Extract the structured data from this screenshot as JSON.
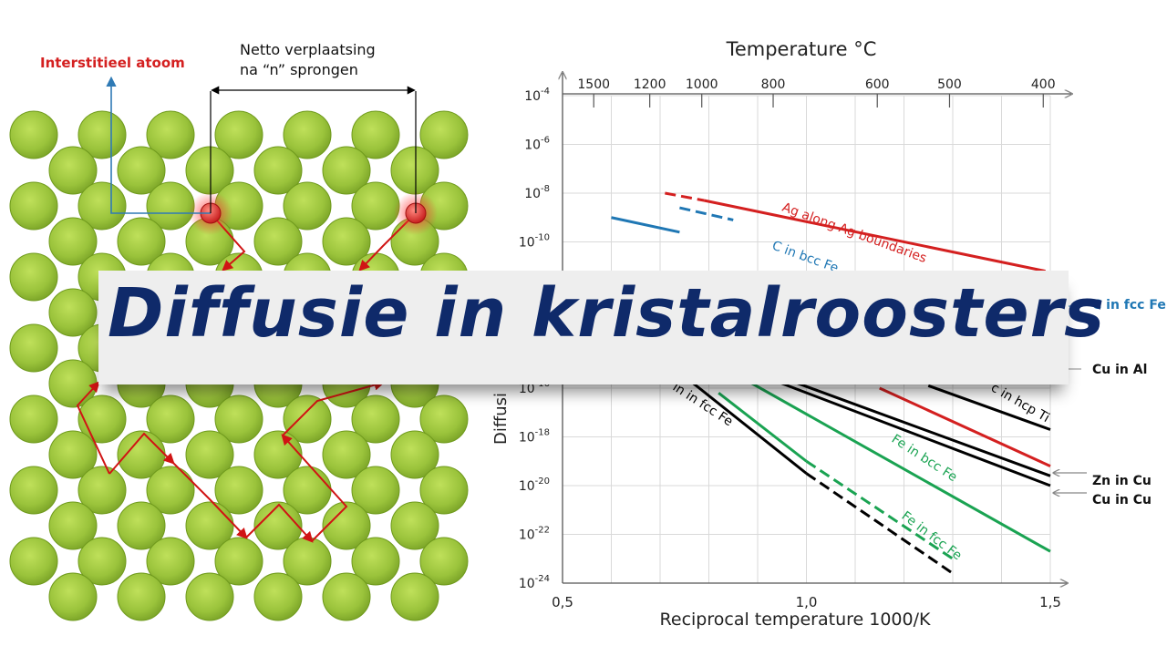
{
  "lattice": {
    "interstitial_label": "Interstitieel atoom",
    "displacement_label_line1": "Netto verplaatsing",
    "displacement_label_line2": "na “n” sprongen",
    "colors": {
      "atom": "#9ac33b",
      "atom_edge": "#6f9a1c",
      "interstitial": "#e23a2e",
      "path": "#d01414",
      "axis": "#2f7ab5"
    }
  },
  "banner": {
    "title": "Diffusie in kristalroosters"
  },
  "chart_data": {
    "type": "line",
    "top_axis_label": "Temperature °C",
    "top_ticks": [
      "1500",
      "1200",
      "1000",
      "800",
      "600",
      "500",
      "400"
    ],
    "top_tick_values": [
      1500,
      1200,
      1000,
      800,
      600,
      500,
      400
    ],
    "xlabel": "Reciprocal temperature 1000/K",
    "ylabel": "Diffusi",
    "x_ticks": [
      "0,5",
      "1,0",
      "1,5"
    ],
    "xlim": [
      0.5,
      1.5
    ],
    "ylim_log10": [
      -24,
      -4
    ],
    "y_ticks": [
      {
        "base": "10",
        "exp": "-4"
      },
      {
        "base": "10",
        "exp": "-6"
      },
      {
        "base": "10",
        "exp": "-8"
      },
      {
        "base": "10",
        "exp": "-10"
      },
      {
        "base": "10",
        "exp": "-16"
      },
      {
        "base": "10",
        "exp": "-18"
      },
      {
        "base": "10",
        "exp": "-20"
      },
      {
        "base": "10",
        "exp": "-22"
      },
      {
        "base": "10",
        "exp": "-24"
      }
    ],
    "y_tick_values": [
      -4,
      -6,
      -8,
      -10,
      -16,
      -18,
      -20,
      -22,
      -24
    ],
    "grid": true,
    "series": [
      {
        "name": "Ag along Ag boundaries",
        "color": "#d42020",
        "dashed": {
          "x": [
            0.71,
            0.79
          ],
          "log10_y": [
            -8.0,
            -8.3
          ]
        },
        "solid": {
          "x": [
            0.79,
            1.49
          ],
          "log10_y": [
            -8.3,
            -11.2
          ]
        }
      },
      {
        "name": "C in bcc Fe",
        "color": "#1f77b4",
        "dashed": {
          "x": [
            0.74,
            0.85
          ],
          "log10_y": [
            -8.6,
            -9.1
          ]
        },
        "solid": {
          "x": [
            0.6,
            0.74
          ],
          "log10_y": [
            -9.0,
            -9.6
          ]
        }
      },
      {
        "name": "Mn in fcc Fe",
        "color": "#000000",
        "dashed": {
          "x": [
            1.0,
            1.3
          ],
          "log10_y": [
            -19.5,
            -23.6
          ]
        },
        "solid": {
          "x": [
            0.68,
            1.0
          ],
          "log10_y": [
            -14.4,
            -19.5
          ]
        }
      },
      {
        "name": "Fe in bcc Fe",
        "color": "#1aa352",
        "solid": {
          "x": [
            0.79,
            1.5
          ],
          "log10_y": [
            -14.7,
            -22.7
          ]
        }
      },
      {
        "name": "Fe in fcc Fe",
        "color": "#1aa352",
        "dashed": {
          "x": [
            1.0,
            1.3
          ],
          "log10_y": [
            -19.0,
            -23.0
          ]
        },
        "solid": {
          "x": [
            0.82,
            1.0
          ],
          "log10_y": [
            -16.2,
            -19.0
          ]
        }
      },
      {
        "name": "Zn in Cu",
        "color": "#000000",
        "solid": {
          "x": [
            0.9,
            1.5
          ],
          "log10_y": [
            -15.2,
            -19.6
          ]
        }
      },
      {
        "name": "Cu in Cu",
        "color": "#000000",
        "solid": {
          "x": [
            0.87,
            1.5
          ],
          "log10_y": [
            -15.2,
            -20.0
          ]
        }
      },
      {
        "name": "Cu in Al",
        "color": "#d42020",
        "solid": {
          "x": [
            1.15,
            1.5
          ],
          "log10_y": [
            -16.0,
            -19.2
          ]
        }
      },
      {
        "name": "in hcp Ti",
        "color": "#000000",
        "solid": {
          "x": [
            1.25,
            1.5
          ],
          "log10_y": [
            -15.9,
            -17.7
          ]
        }
      }
    ],
    "visible_labels": [
      "Ag along Ag boundaries",
      "C in bcc Fe",
      "in in fcc Fe",
      "Fe in bcc Fe",
      "Fe in fcc Fe",
      "c in hcp Ti"
    ],
    "side_labels": [
      {
        "text": "C in fcc Fe",
        "color": "#1f77b4"
      },
      {
        "text": "Cu in Al",
        "color": "#000000"
      },
      {
        "text": "Zn in Cu",
        "color": "#000000"
      },
      {
        "text": "Cu in Cu",
        "color": "#000000"
      }
    ]
  }
}
